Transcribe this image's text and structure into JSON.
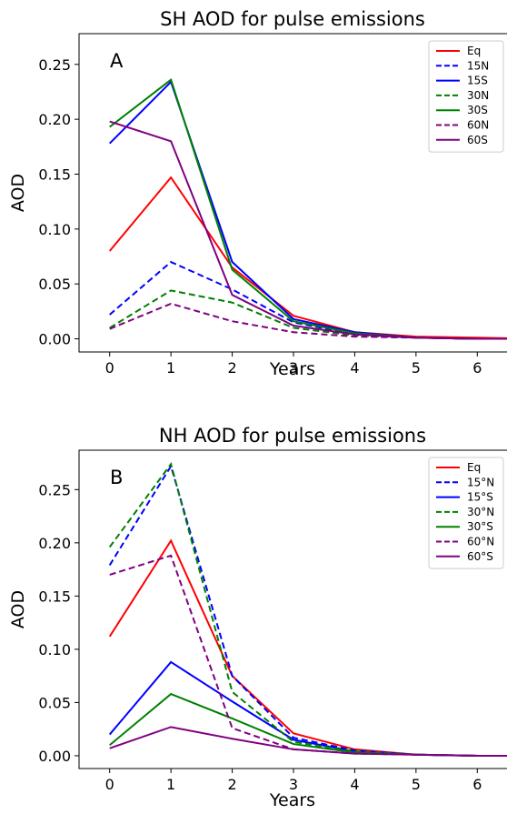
{
  "chart_data": [
    {
      "type": "line",
      "title": "SH AOD for pulse emissions",
      "panel_label": "A",
      "xlabel": "Years",
      "ylabel": "AOD",
      "x": [
        0,
        1,
        2,
        3,
        4,
        5,
        6,
        7
      ],
      "xticks": [
        "0",
        "1",
        "2",
        "3",
        "4",
        "5",
        "6"
      ],
      "yticks": [
        "0.00",
        "0.05",
        "0.10",
        "0.15",
        "0.20",
        "0.25"
      ],
      "xlim": [
        -0.5,
        6.5
      ],
      "ylim": [
        -0.012,
        0.278
      ],
      "legend_position": "top-right",
      "series": [
        {
          "name": "Eq",
          "color": "#ff0000",
          "dash": false,
          "values": [
            0.08,
            0.147,
            0.065,
            0.021,
            0.006,
            0.002,
            0.001,
            0.0
          ]
        },
        {
          "name": "15N",
          "color": "#0000ff",
          "dash": true,
          "values": [
            0.022,
            0.07,
            0.045,
            0.015,
            0.004,
            0.001,
            0.0,
            0.0
          ]
        },
        {
          "name": "15S",
          "color": "#0000ff",
          "dash": false,
          "values": [
            0.178,
            0.234,
            0.07,
            0.018,
            0.006,
            0.001,
            0.0,
            0.0
          ]
        },
        {
          "name": "30N",
          "color": "#008000",
          "dash": true,
          "values": [
            0.01,
            0.044,
            0.033,
            0.01,
            0.003,
            0.001,
            0.0,
            0.0
          ]
        },
        {
          "name": "30S",
          "color": "#008000",
          "dash": false,
          "values": [
            0.193,
            0.236,
            0.063,
            0.016,
            0.005,
            0.001,
            0.0,
            0.0
          ]
        },
        {
          "name": "60N",
          "color": "#800080",
          "dash": true,
          "values": [
            0.009,
            0.032,
            0.016,
            0.006,
            0.002,
            0.001,
            0.0,
            0.0
          ]
        },
        {
          "name": "60S",
          "color": "#800080",
          "dash": false,
          "values": [
            0.198,
            0.18,
            0.04,
            0.012,
            0.004,
            0.001,
            0.0,
            0.0
          ]
        }
      ]
    },
    {
      "type": "line",
      "title": "NH AOD for pulse emissions",
      "panel_label": "B",
      "xlabel": "Years",
      "ylabel": "AOD",
      "x": [
        0,
        1,
        2,
        3,
        4,
        5,
        6,
        7
      ],
      "xticks": [
        "0",
        "1",
        "2",
        "3",
        "4",
        "5",
        "6"
      ],
      "yticks": [
        "0.00",
        "0.05",
        "0.10",
        "0.15",
        "0.20",
        "0.25"
      ],
      "xlim": [
        -0.5,
        6.5
      ],
      "ylim": [
        -0.012,
        0.287
      ],
      "legend_position": "top-right",
      "series": [
        {
          "name": "Eq",
          "color": "#ff0000",
          "dash": false,
          "values": [
            0.112,
            0.202,
            0.075,
            0.021,
            0.006,
            0.001,
            0.0,
            0.0
          ]
        },
        {
          "name": "15°N",
          "color": "#0000ff",
          "dash": true,
          "values": [
            0.179,
            0.272,
            0.075,
            0.017,
            0.005,
            0.001,
            0.0,
            0.0
          ]
        },
        {
          "name": "15°S",
          "color": "#0000ff",
          "dash": false,
          "values": [
            0.02,
            0.088,
            0.051,
            0.015,
            0.004,
            0.001,
            0.0,
            0.0
          ]
        },
        {
          "name": "30°N",
          "color": "#008000",
          "dash": true,
          "values": [
            0.196,
            0.274,
            0.06,
            0.013,
            0.004,
            0.001,
            0.0,
            0.0
          ]
        },
        {
          "name": "30°S",
          "color": "#008000",
          "dash": false,
          "values": [
            0.01,
            0.058,
            0.035,
            0.011,
            0.003,
            0.001,
            0.0,
            0.0
          ]
        },
        {
          "name": "60°N",
          "color": "#800080",
          "dash": true,
          "values": [
            0.17,
            0.188,
            0.026,
            0.006,
            0.002,
            0.001,
            0.0,
            0.0
          ]
        },
        {
          "name": "60°S",
          "color": "#800080",
          "dash": false,
          "values": [
            0.007,
            0.027,
            0.016,
            0.006,
            0.002,
            0.001,
            0.0,
            0.0
          ]
        }
      ]
    }
  ]
}
